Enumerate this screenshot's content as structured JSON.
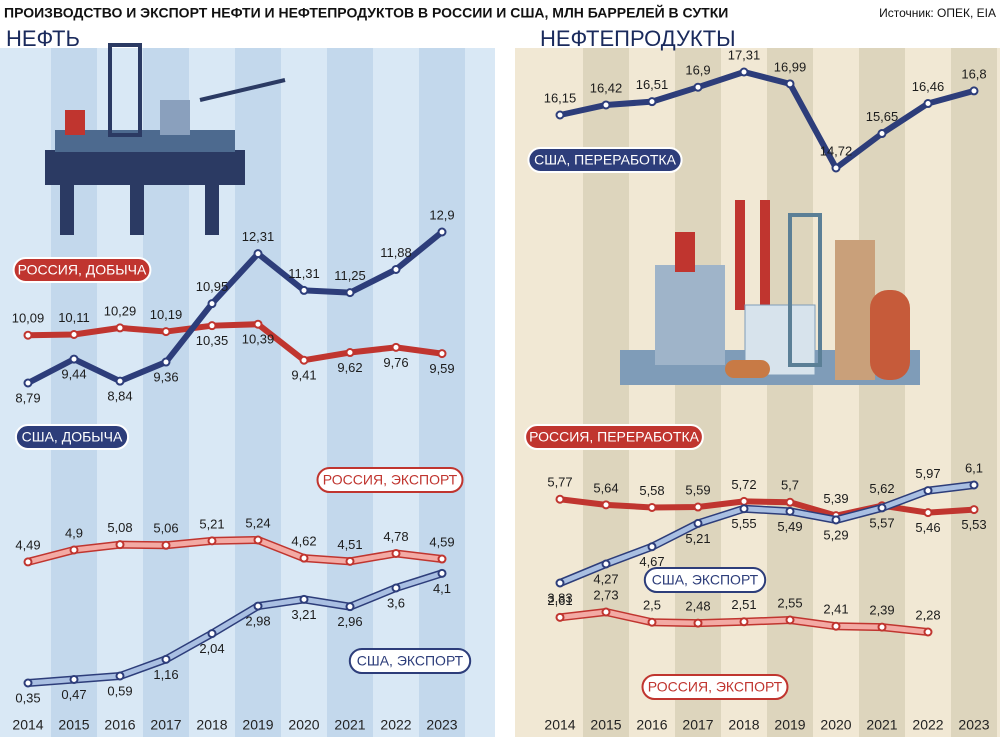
{
  "title": "ПРОИЗВОДСТВО И ЭКСПОРТ НЕФТИ И НЕФТЕПРОДУКТОВ В РОССИИ И США, МЛН БАРРЕЛЕЙ В СУТКИ",
  "source": "Источник: ОПЕК, EIA",
  "chart_data": [
    {
      "type": "line",
      "title": "НЕФТЬ",
      "categories": [
        "2014",
        "2015",
        "2016",
        "2017",
        "2018",
        "2019",
        "2020",
        "2021",
        "2022",
        "2023"
      ],
      "series": [
        {
          "name": "РОССИЯ, ДОБЫЧА",
          "color": "#c0352f",
          "values": [
            10.09,
            10.11,
            10.29,
            10.19,
            10.35,
            10.39,
            9.41,
            9.62,
            9.76,
            9.59
          ],
          "value_labels": [
            "10,09",
            "10,11",
            "10,29",
            "10,19",
            "10,35",
            "10,39",
            "9,41",
            "9,62",
            "9,76",
            "9,59"
          ]
        },
        {
          "name": "США, ДОБЫЧА",
          "color": "#2d3d7a",
          "values": [
            8.79,
            9.44,
            8.84,
            9.36,
            10.95,
            12.31,
            11.31,
            11.25,
            11.88,
            12.9
          ],
          "value_labels": [
            "8,79",
            "9,44",
            "8,84",
            "9,36",
            "10,95",
            "12,31",
            "11,31",
            "11,25",
            "11,88",
            "12,9"
          ]
        },
        {
          "name": "РОССИЯ, ЭКСПОРТ",
          "color": "#f3aaa4",
          "outline_color": "#c0352f",
          "values": [
            4.49,
            4.9,
            5.08,
            5.06,
            5.21,
            5.24,
            4.62,
            4.51,
            4.78,
            4.59
          ],
          "value_labels": [
            "4,49",
            "4,9",
            "5,08",
            "5,06",
            "5,21",
            "5,24",
            "4,62",
            "4,51",
            "4,78",
            "4,59"
          ]
        },
        {
          "name": "США, ЭКСПОРТ",
          "color": "#a9bfe2",
          "outline_color": "#2d3d7a",
          "values": [
            0.35,
            0.47,
            0.59,
            1.16,
            2.04,
            2.98,
            3.21,
            2.96,
            3.6,
            4.1
          ],
          "value_labels": [
            "0,35",
            "0,47",
            "0,59",
            "1,16",
            "2,04",
            "2,98",
            "3,21",
            "2,96",
            "3,6",
            "4,1"
          ]
        }
      ]
    },
    {
      "type": "line",
      "title": "НЕФТЕПРОДУКТЫ",
      "categories": [
        "2014",
        "2015",
        "2016",
        "2017",
        "2018",
        "2019",
        "2020",
        "2021",
        "2022",
        "2023"
      ],
      "series": [
        {
          "name": "США, ПЕРЕРАБОТКА",
          "color": "#2d3d7a",
          "values": [
            16.15,
            16.42,
            16.51,
            16.9,
            17.31,
            16.99,
            14.72,
            15.65,
            16.46,
            16.8
          ],
          "value_labels": [
            "16,15",
            "16,42",
            "16,51",
            "16,9",
            "17,31",
            "16,99",
            "14,72",
            "15,65",
            "16,46",
            "16,8"
          ]
        },
        {
          "name": "РОССИЯ, ПЕРЕРАБОТКА",
          "color": "#c0352f",
          "values": [
            5.77,
            5.64,
            5.58,
            5.59,
            5.72,
            5.7,
            5.39,
            5.62,
            5.46,
            5.53
          ],
          "value_labels": [
            "5,77",
            "5,64",
            "5,58",
            "5,59",
            "5,72",
            "5,7",
            "5,39",
            "5,62",
            "5,46",
            "5,53"
          ]
        },
        {
          "name": "США, ЭКСПОРТ",
          "color": "#a9bfe2",
          "outline_color": "#2d3d7a",
          "values": [
            3.83,
            4.27,
            4.67,
            5.21,
            5.55,
            5.49,
            5.29,
            5.57,
            5.97,
            6.1
          ],
          "value_labels": [
            "3,83",
            "4,27",
            "4,67",
            "5,21",
            "5,55",
            "5,49",
            "5,29",
            "5,57",
            "5,97",
            "6,1"
          ]
        },
        {
          "name": "РОССИЯ, ЭКСПОРТ",
          "color": "#f3aaa4",
          "outline_color": "#c0352f",
          "values": [
            2.61,
            2.73,
            2.5,
            2.48,
            2.51,
            2.55,
            2.41,
            2.39,
            2.28,
            null
          ],
          "value_labels": [
            "2,61",
            "2,73",
            "2,5",
            "2,48",
            "2,51",
            "2,55",
            "2,41",
            "2,39",
            "2,28",
            null
          ]
        }
      ]
    }
  ]
}
